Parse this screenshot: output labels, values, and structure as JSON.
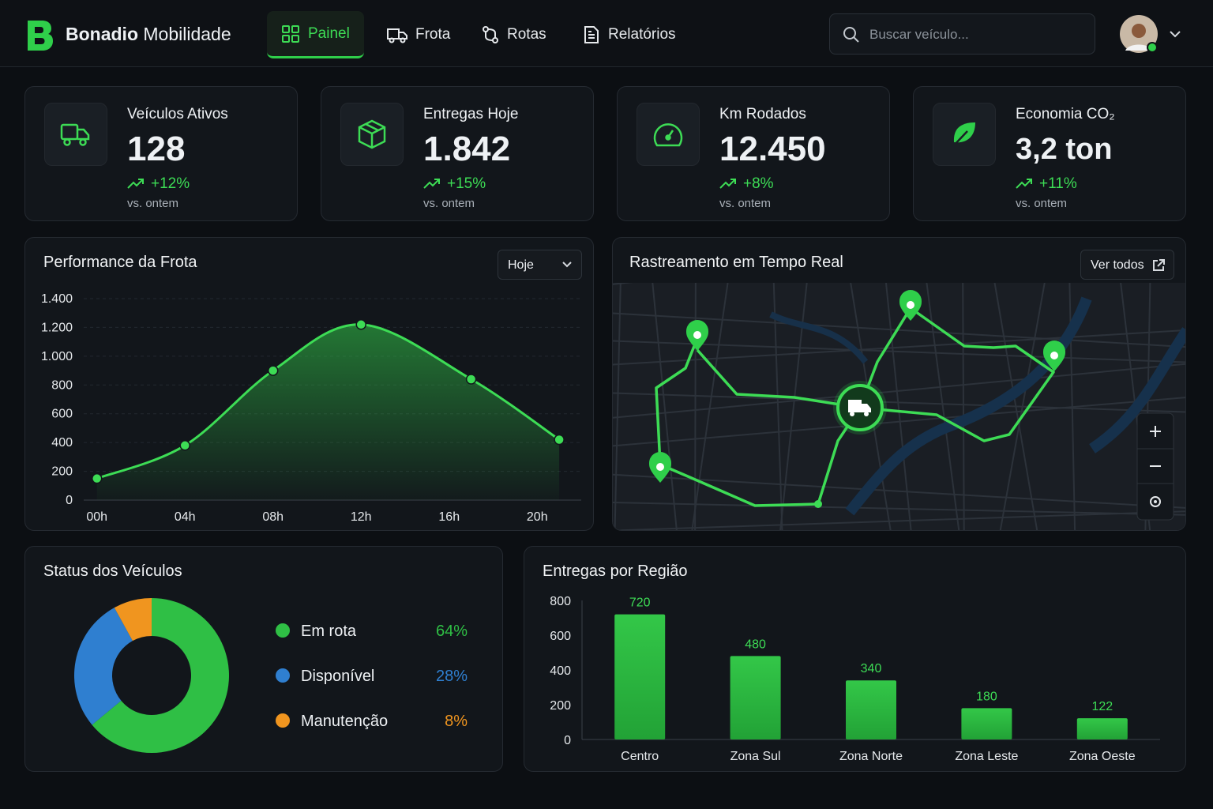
{
  "header": {
    "brand": "Bonadio",
    "brand_suffix": "Mobilidade",
    "nav": [
      "Painel",
      "Frota",
      "Rotas",
      "Relatórios"
    ],
    "search_placeholder": "Buscar veículo..."
  },
  "kpis": [
    {
      "label": "Veículos Ativos",
      "value": "128",
      "change": "+12%",
      "note": "vs. ontem"
    },
    {
      "label": "Entregas Hoje",
      "value": "1.842",
      "change": "+15%",
      "note": "vs. ontem"
    },
    {
      "label": "Km Rodados",
      "value": "12.450",
      "change": "+8%",
      "note": "vs. ontem"
    },
    {
      "label": "Economia CO₂",
      "value": "3,2 ton",
      "change": "+11%",
      "note": "vs. ontem"
    }
  ],
  "map": {
    "title": "Rastreamento em Tempo Real",
    "button": "Ver todos"
  },
  "chart_data": [
    {
      "type": "line",
      "title": "Performance da Frota",
      "filter": "Hoje",
      "x": [
        0,
        4,
        8,
        12,
        17,
        21
      ],
      "values": [
        150,
        380,
        900,
        1220,
        840,
        420
      ],
      "color": "#3ddc55",
      "xlim": [
        -0.6,
        22
      ],
      "xticks": [
        {
          "value": 0,
          "label": "00h"
        },
        {
          "value": 4,
          "label": "04h"
        },
        {
          "value": 8,
          "label": "08h"
        },
        {
          "value": 12,
          "label": "12h"
        },
        {
          "value": 16,
          "label": "16h"
        },
        {
          "value": 20,
          "label": "20h"
        }
      ],
      "ylim": [
        0,
        1400
      ],
      "yticks": [
        0,
        200,
        400,
        600,
        800,
        {
          "value": 1000,
          "label": "1.000"
        },
        {
          "value": 1200,
          "label": "1.200"
        },
        {
          "value": 1400,
          "label": "1.400"
        }
      ],
      "grid": true
    },
    {
      "type": "pie",
      "title": "Status dos Veículos",
      "categories": [
        "Em rota",
        "Disponível",
        "Manutenção"
      ],
      "values": [
        64,
        28,
        8
      ],
      "value_labels": [
        "64%",
        "28%",
        "8%"
      ],
      "colors": [
        "#2fbf45",
        "#2f7fd0",
        "#f0951f"
      ]
    },
    {
      "type": "bar",
      "title": "Entregas por Região",
      "categories": [
        "Centro",
        "Zona Sul",
        "Zona Norte",
        "Zona Leste",
        "Zona Oeste"
      ],
      "values": [
        720,
        480,
        340,
        180,
        122
      ],
      "color": "#2dbd40",
      "ylim": [
        0,
        800
      ],
      "yticks": [
        0,
        200,
        400,
        600,
        800
      ]
    }
  ]
}
